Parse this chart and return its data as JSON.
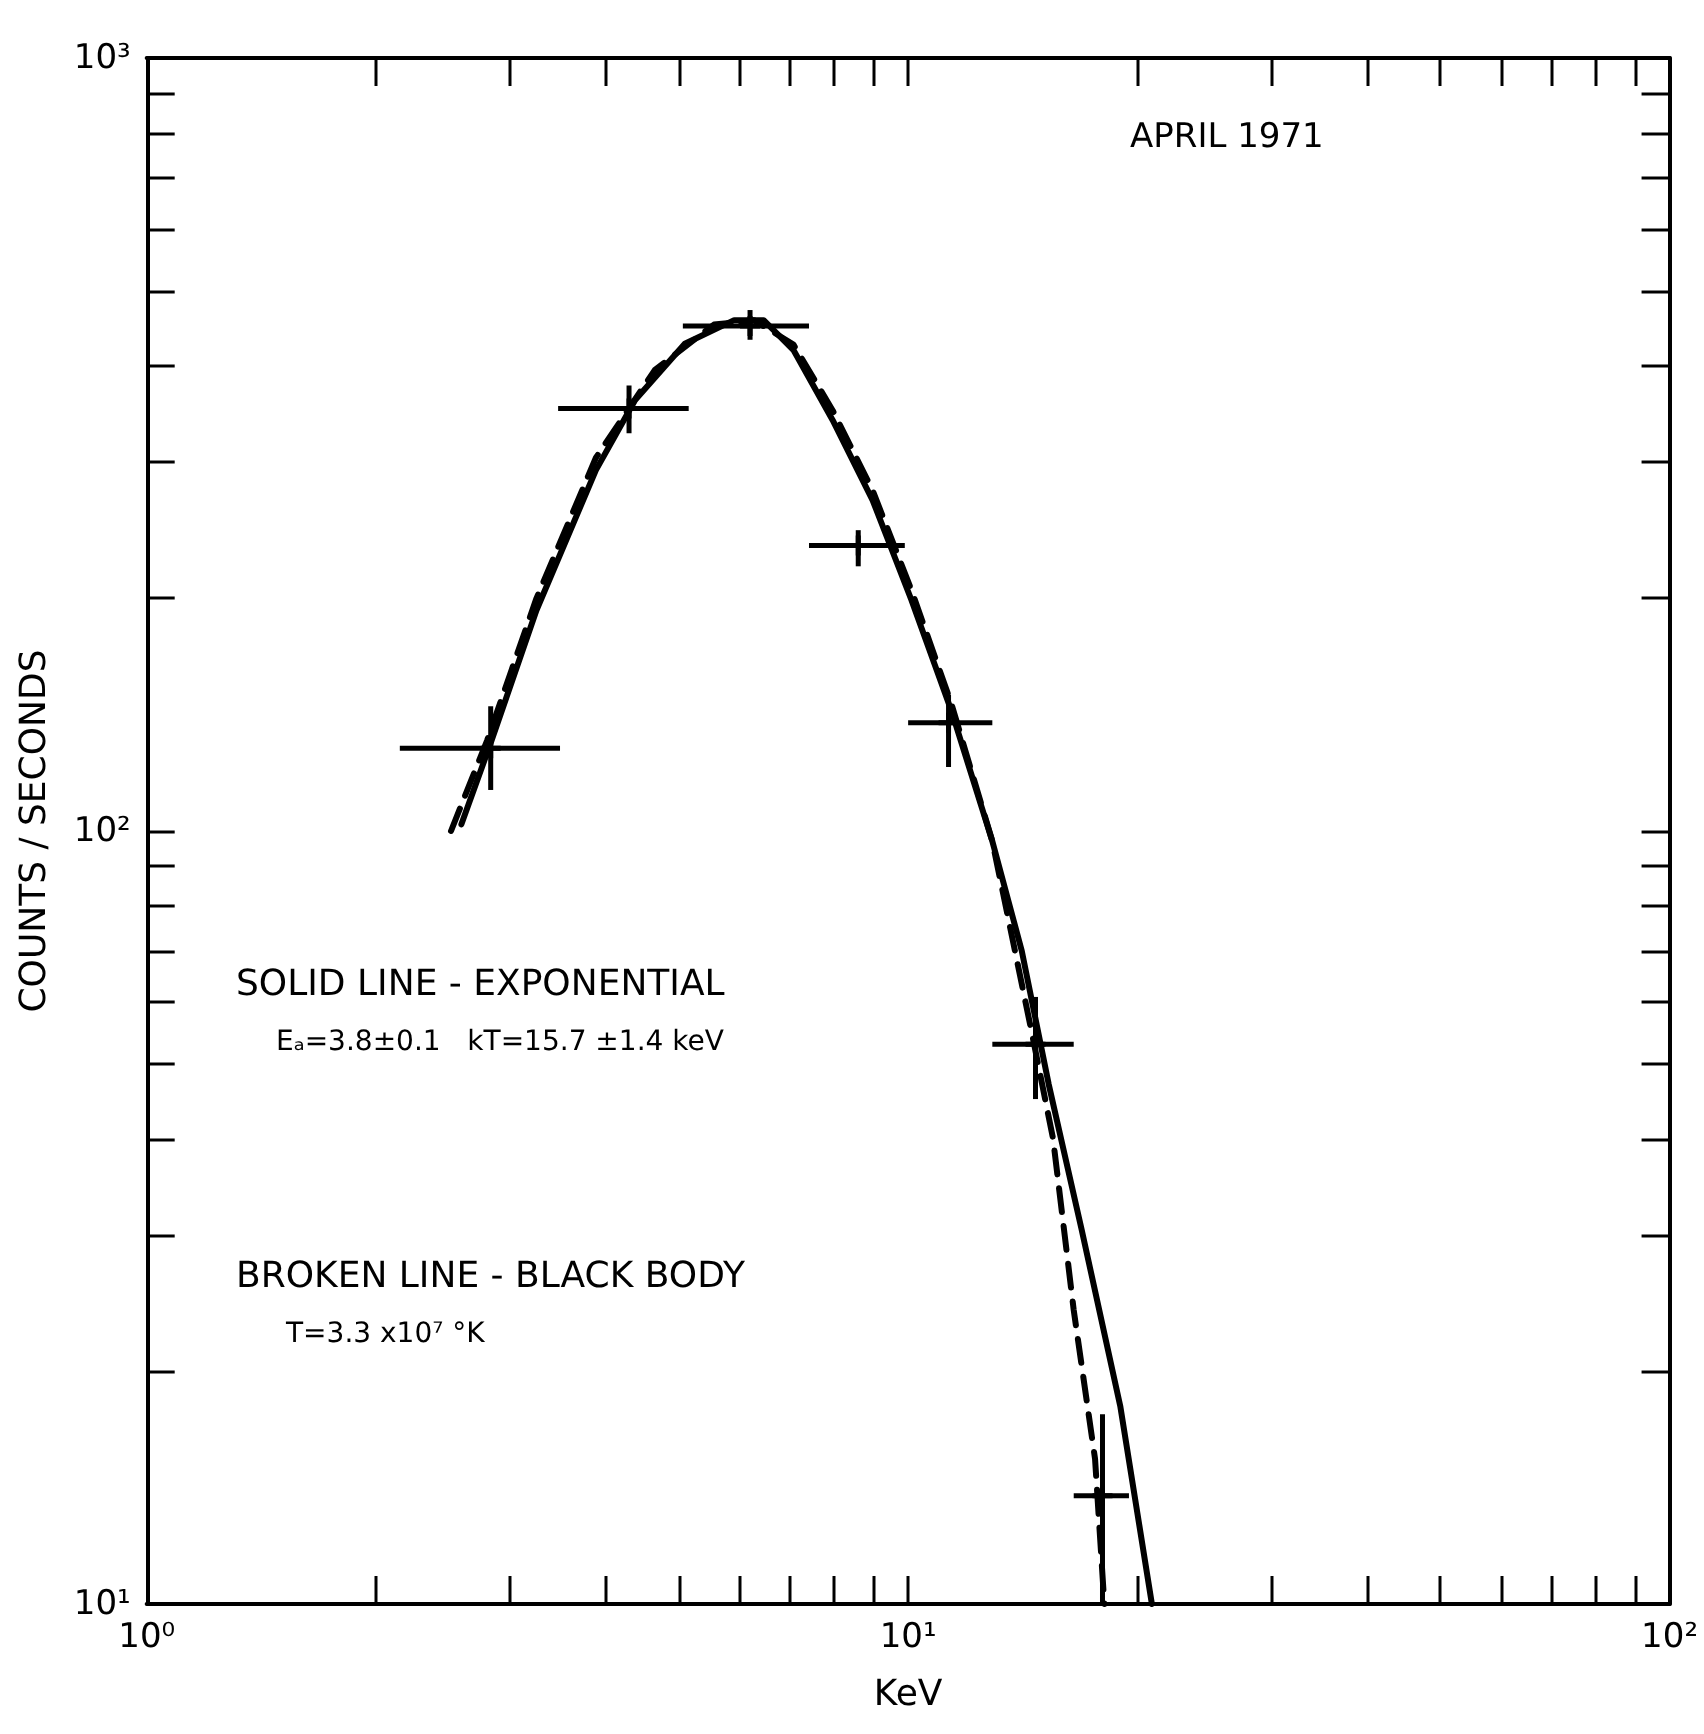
{
  "chart_data": {
    "type": "line",
    "xlabel": "KeV",
    "ylabel": "COUNTS / SECONDS",
    "annotations": [
      "APRIL 1971",
      "SOLID LINE - EXPONENTIAL",
      "Eₐ=3.8±0.1   kT=15.7 ±1.4 keV",
      "BROKEN LINE - BLACK BODY",
      "T=3.3 x10⁷ °K"
    ],
    "log": "xy",
    "grid": false,
    "xlim": [
      1,
      100
    ],
    "ylim": [
      10,
      1000
    ],
    "xticks": [
      {
        "value": 1,
        "label": "10⁰"
      },
      {
        "value": 2,
        "label": null
      },
      {
        "value": 3,
        "label": null
      },
      {
        "value": 4,
        "label": null
      },
      {
        "value": 5,
        "label": null
      },
      {
        "value": 6,
        "label": null
      },
      {
        "value": 7,
        "label": null
      },
      {
        "value": 8,
        "label": null
      },
      {
        "value": 9,
        "label": null
      },
      {
        "value": 10,
        "label": "10¹"
      },
      {
        "value": 20,
        "label": null
      },
      {
        "value": 30,
        "label": null
      },
      {
        "value": 40,
        "label": null
      },
      {
        "value": 50,
        "label": null
      },
      {
        "value": 60,
        "label": null
      },
      {
        "value": 70,
        "label": null
      },
      {
        "value": 80,
        "label": null
      },
      {
        "value": 90,
        "label": null
      },
      {
        "value": 100,
        "label": "10²"
      }
    ],
    "yticks": [
      {
        "value": 10,
        "label": "10¹"
      },
      {
        "value": 20,
        "label": null
      },
      {
        "value": 30,
        "label": null
      },
      {
        "value": 40,
        "label": null
      },
      {
        "value": 50,
        "label": null
      },
      {
        "value": 60,
        "label": null
      },
      {
        "value": 70,
        "label": null
      },
      {
        "value": 80,
        "label": null
      },
      {
        "value": 90,
        "label": null
      },
      {
        "value": 100,
        "label": "10²"
      },
      {
        "value": 200,
        "label": null
      },
      {
        "value": 300,
        "label": null
      },
      {
        "value": 400,
        "label": null
      },
      {
        "value": 500,
        "label": null
      },
      {
        "value": 600,
        "label": null
      },
      {
        "value": 700,
        "label": null
      },
      {
        "value": 800,
        "label": null
      },
      {
        "value": 900,
        "label": null
      },
      {
        "value": 1000,
        "label": "10³"
      }
    ],
    "series": [
      {
        "type": "scatter",
        "marker": "cross",
        "color": "#000000",
        "x": [
          2.83,
          4.3,
          6.2,
          8.6,
          11.3,
          14.7,
          18.0
        ],
        "values": [
          128,
          352,
          450,
          234,
          138,
          53,
          13.8
        ],
        "errors": [
          [
            113,
            145
          ],
          [
            327,
            377
          ],
          [
            432,
            472
          ],
          [
            220,
            245
          ],
          [
            121,
            150
          ],
          [
            45,
            61
          ],
          [
            10,
            17.6
          ]
        ],
        "xerrors": [
          [
            2.15,
            3.49
          ],
          [
            3.47,
            5.15
          ],
          [
            5.06,
            7.41
          ],
          [
            7.41,
            9.9
          ],
          [
            10,
            12.9
          ],
          [
            12.9,
            16.5
          ],
          [
            16.5,
            19.5
          ]
        ]
      },
      {
        "line_style": "solid",
        "color": "#000000",
        "x": [
          2.59,
          2.83,
          3.25,
          3.89,
          4.38,
          5.09,
          5.91,
          6.46,
          7.07,
          7.96,
          8.98,
          10.1,
          11.4,
          12.9,
          14.1,
          15.3,
          16.9,
          19.0,
          20.9
        ],
        "values": [
          102,
          130,
          193,
          293,
          361,
          427,
          458,
          458,
          419,
          340,
          268,
          199,
          143,
          97,
          70,
          47,
          30.5,
          18,
          10
        ]
      },
      {
        "line_style": "dashed",
        "color": "#000000",
        "x": [
          2.51,
          2.8,
          3.25,
          3.89,
          4.65,
          5.56,
          6.27,
          7.07,
          7.96,
          8.98,
          10.1,
          11.4,
          12.9,
          14.5,
          15.5,
          16.5,
          17.6,
          18.1
        ],
        "values": [
          100,
          131,
          200,
          304,
          395,
          452,
          458,
          426,
          350,
          276,
          205,
          146,
          97,
          55.5,
          40,
          24,
          15.4,
          10
        ]
      }
    ]
  }
}
